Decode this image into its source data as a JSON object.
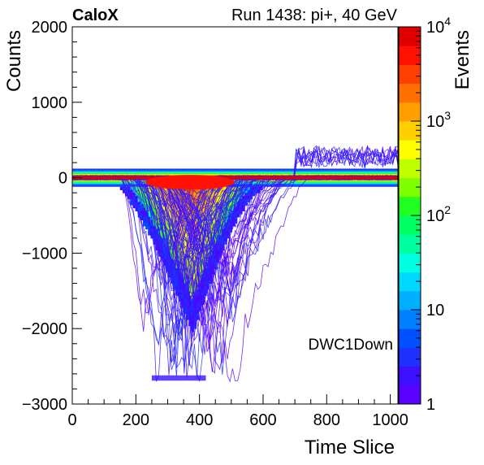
{
  "header": {
    "experiment": "CaloX",
    "run_info": "Run 1438: pi+, 40 GeV"
  },
  "chart_data": {
    "type": "heatmap",
    "xlabel": "Time Slice",
    "ylabel": "Counts",
    "zlabel": "Events",
    "xlim": [
      0,
      1024
    ],
    "ylim": [
      -3000,
      2000
    ],
    "zlim": [
      1,
      10000
    ],
    "zscale": "log",
    "xticks": [
      0,
      200,
      400,
      600,
      800,
      1000
    ],
    "xtick_labels": [
      "0",
      "200",
      "400",
      "600",
      "800",
      "1000"
    ],
    "yticks": [
      2000,
      1000,
      0,
      -1000,
      -2000,
      -3000
    ],
    "ytick_labels": [
      "2000",
      "1000",
      "0",
      "−1000",
      "−2000",
      "−3000"
    ],
    "zticks": [
      1,
      10,
      100,
      1000,
      10000
    ],
    "ztick_labels": [
      {
        "base": "1",
        "exp": ""
      },
      {
        "base": "10",
        "exp": ""
      },
      {
        "base": "10",
        "exp": "2"
      },
      {
        "base": "10",
        "exp": "3"
      },
      {
        "base": "10",
        "exp": "4"
      }
    ],
    "annotation": "DWC1Down",
    "pedestal_band": {
      "x": [
        0,
        1024
      ],
      "y": [
        -120,
        120
      ],
      "peak_events": 10000
    },
    "pulse_region": {
      "x_start": 150,
      "x_peak": 380,
      "x_end": 600,
      "y_min": -2700,
      "peak_counts_center": -700
    },
    "colormap": [
      "#5a00ff",
      "#3c0fff",
      "#2030ff",
      "#0050ff",
      "#0080ff",
      "#00b0ff",
      "#00d8ff",
      "#00ffe0",
      "#00ffa0",
      "#00ff60",
      "#20ff20",
      "#80ff00",
      "#c0ff00",
      "#ffff00",
      "#ffd000",
      "#ffa000",
      "#ff7000",
      "#ff4000",
      "#ff1000",
      "#e00000"
    ]
  }
}
